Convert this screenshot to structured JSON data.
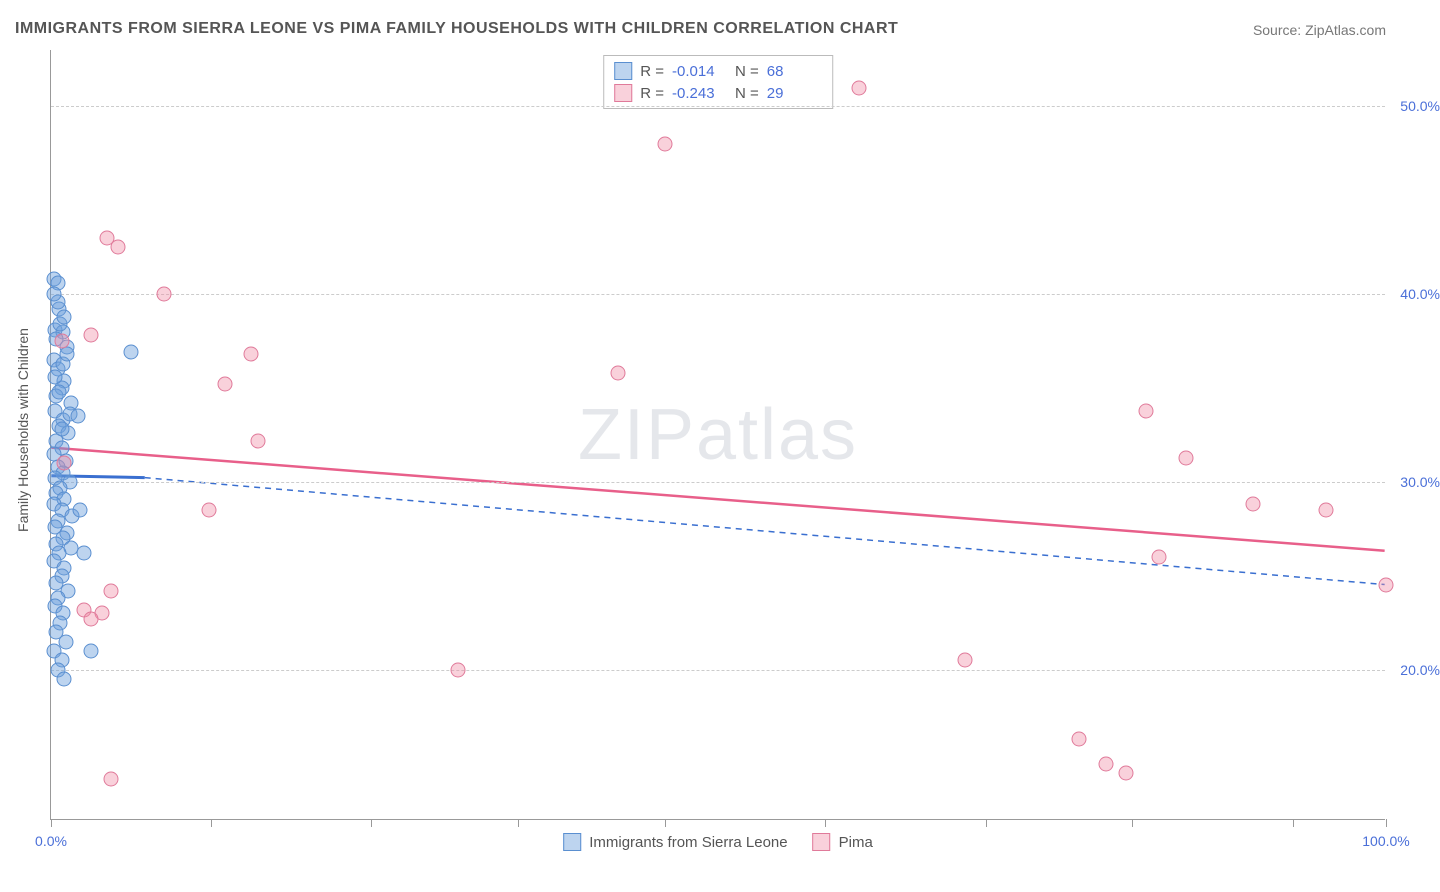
{
  "title": "IMMIGRANTS FROM SIERRA LEONE VS PIMA FAMILY HOUSEHOLDS WITH CHILDREN CORRELATION CHART",
  "source": "Source: ZipAtlas.com",
  "watermark": "ZIPatlas",
  "y_axis_label": "Family Households with Children",
  "x_domain": [
    0,
    100
  ],
  "y_domain": [
    12,
    53
  ],
  "y_ticks": [
    {
      "v": 20.0,
      "label": "20.0%"
    },
    {
      "v": 30.0,
      "label": "30.0%"
    },
    {
      "v": 40.0,
      "label": "40.0%"
    },
    {
      "v": 50.0,
      "label": "50.0%"
    }
  ],
  "x_ticks": [
    0,
    12,
    24,
    35,
    46,
    58,
    70,
    81,
    93,
    100
  ],
  "x_labels": [
    {
      "v": 0,
      "text": "0.0%"
    },
    {
      "v": 100,
      "text": "100.0%"
    }
  ],
  "series": [
    {
      "name": "Immigrants from Sierra Leone",
      "fill": "rgba(108,160,220,0.45)",
      "stroke": "#5a8fd0",
      "r_label": "R =",
      "r_value": "-0.014",
      "n_label": "N =",
      "n_value": "68",
      "trend": {
        "x1": 0,
        "y1": 30.3,
        "x2": 7,
        "y2": 30.2,
        "dashed_x2": 100,
        "dashed_y2": 24.5,
        "color": "#3a6fd0",
        "width": 3
      },
      "points": [
        [
          0.2,
          40.8
        ],
        [
          0.5,
          40.6
        ],
        [
          0.6,
          39.2
        ],
        [
          0.3,
          38.1
        ],
        [
          0.9,
          38.0
        ],
        [
          1.2,
          37.2
        ],
        [
          0.2,
          36.5
        ],
        [
          0.5,
          36.0
        ],
        [
          1.0,
          35.4
        ],
        [
          0.8,
          35.0
        ],
        [
          0.4,
          34.6
        ],
        [
          1.5,
          34.2
        ],
        [
          0.3,
          33.8
        ],
        [
          0.9,
          33.3
        ],
        [
          0.6,
          33.0
        ],
        [
          1.3,
          32.6
        ],
        [
          0.4,
          32.2
        ],
        [
          0.8,
          31.8
        ],
        [
          0.2,
          31.5
        ],
        [
          1.1,
          31.1
        ],
        [
          0.5,
          30.8
        ],
        [
          0.9,
          30.5
        ],
        [
          0.3,
          30.2
        ],
        [
          1.4,
          30.0
        ],
        [
          0.7,
          29.7
        ],
        [
          0.4,
          29.4
        ],
        [
          1.0,
          29.1
        ],
        [
          0.2,
          28.8
        ],
        [
          0.8,
          28.5
        ],
        [
          1.6,
          28.2
        ],
        [
          0.5,
          27.9
        ],
        [
          0.3,
          27.6
        ],
        [
          1.2,
          27.3
        ],
        [
          0.9,
          27.0
        ],
        [
          0.4,
          26.7
        ],
        [
          1.5,
          26.5
        ],
        [
          0.6,
          26.2
        ],
        [
          0.2,
          25.8
        ],
        [
          1.0,
          25.4
        ],
        [
          0.8,
          25.0
        ],
        [
          0.4,
          24.6
        ],
        [
          1.3,
          24.2
        ],
        [
          0.5,
          23.8
        ],
        [
          0.3,
          23.4
        ],
        [
          0.9,
          23.0
        ],
        [
          0.7,
          22.5
        ],
        [
          0.4,
          22.0
        ],
        [
          1.1,
          21.5
        ],
        [
          0.2,
          21.0
        ],
        [
          0.8,
          20.5
        ],
        [
          0.5,
          20.0
        ],
        [
          1.0,
          19.5
        ],
        [
          0.6,
          34.8
        ],
        [
          0.3,
          35.6
        ],
        [
          0.9,
          36.3
        ],
        [
          1.2,
          36.8
        ],
        [
          0.4,
          37.6
        ],
        [
          0.7,
          38.4
        ],
        [
          1.0,
          38.8
        ],
        [
          0.5,
          39.6
        ],
        [
          0.2,
          40.0
        ],
        [
          1.4,
          33.6
        ],
        [
          0.8,
          32.8
        ],
        [
          6.0,
          36.9
        ],
        [
          2.5,
          26.2
        ],
        [
          2.2,
          28.5
        ],
        [
          2.0,
          33.5
        ],
        [
          3.0,
          21.0
        ]
      ]
    },
    {
      "name": "Pima",
      "fill": "rgba(240,140,165,0.4)",
      "stroke": "#e07a9a",
      "r_label": "R =",
      "r_value": "-0.243",
      "n_label": "N =",
      "n_value": "29",
      "trend": {
        "x1": 0,
        "y1": 31.8,
        "x2": 100,
        "y2": 26.3,
        "color": "#e85f8a",
        "width": 2.5
      },
      "points": [
        [
          4.2,
          43.0
        ],
        [
          5.0,
          42.5
        ],
        [
          8.5,
          40.0
        ],
        [
          15.0,
          36.8
        ],
        [
          13.0,
          35.2
        ],
        [
          15.5,
          32.2
        ],
        [
          11.8,
          28.5
        ],
        [
          3.0,
          37.8
        ],
        [
          0.8,
          37.5
        ],
        [
          2.5,
          23.2
        ],
        [
          3.8,
          23.0
        ],
        [
          3.0,
          22.7
        ],
        [
          4.5,
          24.2
        ],
        [
          4.5,
          14.2
        ],
        [
          30.5,
          20.0
        ],
        [
          46.0,
          48.0
        ],
        [
          42.5,
          35.8
        ],
        [
          60.5,
          51.0
        ],
        [
          68.5,
          20.5
        ],
        [
          82.0,
          33.8
        ],
        [
          80.5,
          14.5
        ],
        [
          79.0,
          15.0
        ],
        [
          77.0,
          16.3
        ],
        [
          85.0,
          31.3
        ],
        [
          83.0,
          26.0
        ],
        [
          90.0,
          28.8
        ],
        [
          95.5,
          28.5
        ],
        [
          100.0,
          24.5
        ],
        [
          1.0,
          31.0
        ]
      ]
    }
  ],
  "legend_bottom": [
    {
      "swatch_fill": "rgba(108,160,220,0.45)",
      "swatch_stroke": "#5a8fd0",
      "label": "Immigrants from Sierra Leone"
    },
    {
      "swatch_fill": "rgba(240,140,165,0.4)",
      "swatch_stroke": "#e07a9a",
      "label": "Pima"
    }
  ]
}
